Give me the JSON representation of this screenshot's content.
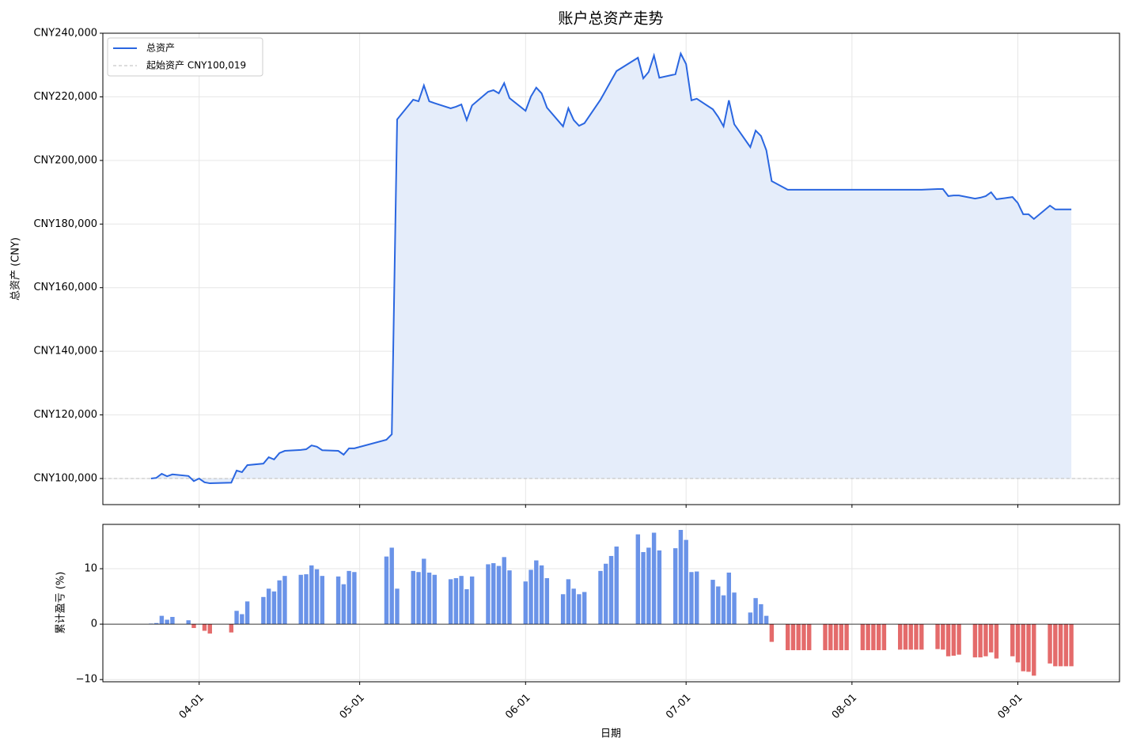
{
  "chart_data": [
    {
      "type": "line",
      "title": "账户总资产走势",
      "y_label": "总资产 (CNY)",
      "x": [
        "03-23",
        "03-24",
        "03-25",
        "03-26",
        "03-27",
        "03-30",
        "03-31",
        "04-01",
        "04-02",
        "04-03",
        "04-07",
        "04-08",
        "04-09",
        "04-10",
        "04-13",
        "04-14",
        "04-15",
        "04-16",
        "04-17",
        "04-20",
        "04-21",
        "04-22",
        "04-23",
        "04-24",
        "04-27",
        "04-28",
        "04-29",
        "04-30",
        "05-06",
        "05-07",
        "05-08",
        "05-11",
        "05-12",
        "05-13",
        "05-14",
        "05-15",
        "05-18",
        "05-19",
        "05-20",
        "05-21",
        "05-22",
        "05-25",
        "05-26",
        "05-27",
        "05-28",
        "05-29",
        "06-01",
        "06-02",
        "06-03",
        "06-04",
        "06-05",
        "06-08",
        "06-09",
        "06-10",
        "06-11",
        "06-12",
        "06-15",
        "06-16",
        "06-17",
        "06-18",
        "06-22",
        "06-23",
        "06-24",
        "06-25",
        "06-26",
        "06-29",
        "06-30",
        "07-01",
        "07-02",
        "07-03",
        "07-06",
        "07-07",
        "07-08",
        "07-09",
        "07-10",
        "07-13",
        "07-14",
        "07-15",
        "07-16",
        "07-17",
        "07-20",
        "07-21",
        "07-22",
        "07-23",
        "07-24",
        "07-27",
        "07-28",
        "07-29",
        "07-30",
        "07-31",
        "08-03",
        "08-04",
        "08-05",
        "08-06",
        "08-07",
        "08-10",
        "08-11",
        "08-12",
        "08-13",
        "08-14",
        "08-17",
        "08-18",
        "08-19",
        "08-20",
        "08-21",
        "08-24",
        "08-25",
        "08-26",
        "08-27",
        "08-28",
        "08-31",
        "09-01",
        "09-02",
        "09-03",
        "09-04",
        "09-07",
        "09-08",
        "09-09",
        "09-10",
        "09-11"
      ],
      "series": [
        {
          "name": "总资产",
          "color": "#2a66e0",
          "fill": "#e5edfa",
          "values": [
            100000,
            100200,
            101500,
            100700,
            101300,
            100800,
            99200,
            100000,
            98800,
            98500,
            98700,
            102500,
            102000,
            104200,
            104700,
            106700,
            106000,
            108000,
            108700,
            109000,
            109200,
            110400,
            110000,
            108900,
            108700,
            107500,
            109500,
            109500,
            112200,
            113900,
            212900,
            219100,
            218600,
            223600,
            218600,
            218000,
            216400,
            216900,
            217600,
            212700,
            217300,
            221600,
            222100,
            221100,
            224300,
            219600,
            215600,
            220100,
            222900,
            221100,
            216600,
            210700,
            216400,
            212700,
            210900,
            211700,
            219100,
            222100,
            225100,
            228100,
            232300,
            225800,
            227800,
            233000,
            226000,
            227100,
            233600,
            230300,
            218900,
            219400,
            216100,
            213700,
            210700,
            218900,
            211400,
            204200,
            209400,
            207700,
            203200,
            193500,
            190800,
            190800,
            190800,
            190800,
            190800,
            190800,
            190800,
            190800,
            190800,
            190800,
            190800,
            190800,
            190800,
            190800,
            190800,
            190800,
            190800,
            190800,
            190800,
            190800,
            191000,
            191000,
            188800,
            189000,
            189000,
            188000,
            188300,
            188800,
            190000,
            187800,
            188500,
            186600,
            183100,
            183100,
            181600,
            185800,
            184600,
            184600,
            184600,
            184600
          ]
        }
      ],
      "reference_line": {
        "name": "起始资产 CNY100,019",
        "value": 100019,
        "color": "#bbbbbb"
      },
      "xlim": [
        "03-14",
        "09-20"
      ],
      "xticks": [
        "04-01",
        "05-01",
        "06-01",
        "07-01",
        "08-01",
        "09-01"
      ],
      "ylim": [
        91800,
        240000
      ],
      "yticks": [
        {
          "value": 100000,
          "label": "CNY100,000"
        },
        {
          "value": 120000,
          "label": "CNY120,000"
        },
        {
          "value": 140000,
          "label": "CNY140,000"
        },
        {
          "value": 160000,
          "label": "CNY160,000"
        },
        {
          "value": 180000,
          "label": "CNY180,000"
        },
        {
          "value": 200000,
          "label": "CNY200,000"
        },
        {
          "value": 220000,
          "label": "CNY220,000"
        },
        {
          "value": 240000,
          "label": "CNY240,000"
        }
      ],
      "grid": true,
      "legend": "upper left"
    },
    {
      "type": "bar",
      "x_label": "日期",
      "y_label": "累计盈亏 (%)",
      "x": [
        "03-23",
        "03-24",
        "03-25",
        "03-26",
        "03-27",
        "03-30",
        "03-31",
        "04-01",
        "04-02",
        "04-03",
        "04-07",
        "04-08",
        "04-09",
        "04-10",
        "04-13",
        "04-14",
        "04-15",
        "04-16",
        "04-17",
        "04-20",
        "04-21",
        "04-22",
        "04-23",
        "04-24",
        "04-27",
        "04-28",
        "04-29",
        "04-30",
        "05-06",
        "05-07",
        "05-08",
        "05-11",
        "05-12",
        "05-13",
        "05-14",
        "05-15",
        "05-18",
        "05-19",
        "05-20",
        "05-21",
        "05-22",
        "05-25",
        "05-26",
        "05-27",
        "05-28",
        "05-29",
        "06-01",
        "06-02",
        "06-03",
        "06-04",
        "06-05",
        "06-08",
        "06-09",
        "06-10",
        "06-11",
        "06-12",
        "06-15",
        "06-16",
        "06-17",
        "06-18",
        "06-22",
        "06-23",
        "06-24",
        "06-25",
        "06-26",
        "06-29",
        "06-30",
        "07-01",
        "07-02",
        "07-03",
        "07-06",
        "07-07",
        "07-08",
        "07-09",
        "07-10",
        "07-13",
        "07-14",
        "07-15",
        "07-16",
        "07-17",
        "07-20",
        "07-21",
        "07-22",
        "07-23",
        "07-24",
        "07-27",
        "07-28",
        "07-29",
        "07-30",
        "07-31",
        "08-03",
        "08-04",
        "08-05",
        "08-06",
        "08-07",
        "08-10",
        "08-11",
        "08-12",
        "08-13",
        "08-14",
        "08-17",
        "08-18",
        "08-19",
        "08-20",
        "08-21",
        "08-24",
        "08-25",
        "08-26",
        "08-27",
        "08-28",
        "08-31",
        "09-01",
        "09-02",
        "09-03",
        "09-04",
        "09-07",
        "09-08",
        "09-09",
        "09-10",
        "09-11"
      ],
      "values": [
        0.1,
        0.2,
        1.5,
        0.8,
        1.3,
        0.7,
        -0.7,
        0,
        -1.2,
        -1.7,
        -1.5,
        2.4,
        1.8,
        4.1,
        4.9,
        6.4,
        5.9,
        7.9,
        8.7,
        8.9,
        9.0,
        10.6,
        9.9,
        8.7,
        8.6,
        7.2,
        9.6,
        9.4,
        12.2,
        13.8,
        6.4,
        9.6,
        9.4,
        11.8,
        9.3,
        8.9,
        8.1,
        8.3,
        8.7,
        6.3,
        8.6,
        10.8,
        11.0,
        10.5,
        12.1,
        9.7,
        7.7,
        9.8,
        11.5,
        10.6,
        8.3,
        5.4,
        8.1,
        6.4,
        5.4,
        5.8,
        9.6,
        10.9,
        12.3,
        14.0,
        16.2,
        13.0,
        13.8,
        16.5,
        13.3,
        13.7,
        17.0,
        15.2,
        9.4,
        9.5,
        8.0,
        6.8,
        5.2,
        9.3,
        5.7,
        2.1,
        4.7,
        3.6,
        1.5,
        -3.2,
        -4.7,
        -4.7,
        -4.7,
        -4.7,
        -4.7,
        -4.7,
        -4.7,
        -4.7,
        -4.7,
        -4.7,
        -4.7,
        -4.7,
        -4.7,
        -4.7,
        -4.7,
        -4.6,
        -4.6,
        -4.6,
        -4.6,
        -4.6,
        -4.5,
        -4.6,
        -5.8,
        -5.7,
        -5.5,
        -6.0,
        -6.0,
        -5.8,
        -5.1,
        -6.2,
        -5.8,
        -6.9,
        -8.5,
        -8.6,
        -9.3,
        -7.1,
        -7.6,
        -7.6,
        -7.6,
        -7.6
      ],
      "positive_color": "#6a93e8",
      "negative_color": "#e46b6b",
      "xlim": [
        "03-14",
        "09-20"
      ],
      "xticks": [
        "04-01",
        "05-01",
        "06-01",
        "07-01",
        "08-01",
        "09-01"
      ],
      "ylim": [
        -10.4,
        18
      ],
      "yticks": [
        {
          "value": -10,
          "label": "−10"
        },
        0,
        10
      ],
      "grid": true
    }
  ]
}
